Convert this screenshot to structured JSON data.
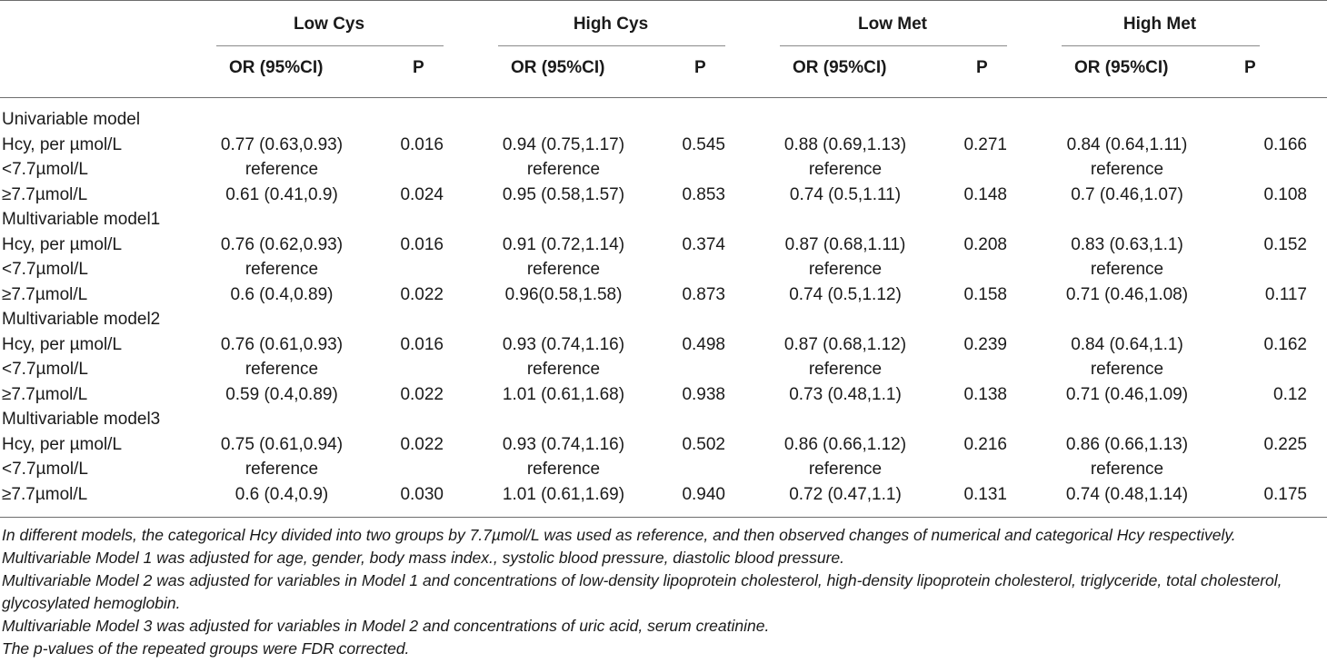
{
  "groups": [
    {
      "name": "Low Cys",
      "or_header": "OR (95%CI)",
      "p_header": "P"
    },
    {
      "name": "High Cys",
      "or_header": "OR (95%CI)",
      "p_header": "P"
    },
    {
      "name": "Low Met",
      "or_header": "OR (95%CI)",
      "p_header": "P"
    },
    {
      "name": "High Met",
      "or_header": "OR (95%CI)",
      "p_header": "P"
    }
  ],
  "rows": [
    {
      "label": "Univariable model",
      "cells": []
    },
    {
      "label": "Hcy, per µmol/L",
      "cells": [
        [
          "0.77 (0.63,0.93)",
          "0.016"
        ],
        [
          "0.94 (0.75,1.17)",
          "0.545"
        ],
        [
          "0.88 (0.69,1.13)",
          "0.271"
        ],
        [
          "0.84 (0.64,1.11)",
          "0.166"
        ]
      ]
    },
    {
      "label": "<7.7µmol/L",
      "cells": [
        [
          "reference",
          ""
        ],
        [
          "reference",
          ""
        ],
        [
          "reference",
          ""
        ],
        [
          "reference",
          ""
        ]
      ]
    },
    {
      "label": "≥7.7µmol/L",
      "cells": [
        [
          "0.61 (0.41,0.9)",
          "0.024"
        ],
        [
          "0.95 (0.58,1.57)",
          "0.853"
        ],
        [
          "0.74 (0.5,1.11)",
          "0.148"
        ],
        [
          "0.7 (0.46,1.07)",
          "0.108"
        ]
      ]
    },
    {
      "label": "Multivariable model1",
      "cells": []
    },
    {
      "label": "Hcy, per µmol/L",
      "cells": [
        [
          "0.76 (0.62,0.93)",
          "0.016"
        ],
        [
          "0.91 (0.72,1.14)",
          "0.374"
        ],
        [
          "0.87 (0.68,1.11)",
          "0.208"
        ],
        [
          "0.83 (0.63,1.1)",
          "0.152"
        ]
      ]
    },
    {
      "label": "<7.7µmol/L",
      "cells": [
        [
          "reference",
          ""
        ],
        [
          "reference",
          ""
        ],
        [
          "reference",
          ""
        ],
        [
          "reference",
          ""
        ]
      ]
    },
    {
      "label": "≥7.7µmol/L",
      "cells": [
        [
          "0.6 (0.4,0.89)",
          "0.022"
        ],
        [
          "0.96(0.58,1.58)",
          "0.873"
        ],
        [
          "0.74 (0.5,1.12)",
          "0.158"
        ],
        [
          "0.71 (0.46,1.08)",
          "0.117"
        ]
      ]
    },
    {
      "label": "Multivariable model2",
      "cells": []
    },
    {
      "label": "Hcy, per µmol/L",
      "cells": [
        [
          "0.76 (0.61,0.93)",
          "0.016"
        ],
        [
          "0.93 (0.74,1.16)",
          "0.498"
        ],
        [
          "0.87 (0.68,1.12)",
          "0.239"
        ],
        [
          "0.84 (0.64,1.1)",
          "0.162"
        ]
      ]
    },
    {
      "label": "<7.7µmol/L",
      "cells": [
        [
          "reference",
          ""
        ],
        [
          "reference",
          ""
        ],
        [
          "reference",
          ""
        ],
        [
          "reference",
          ""
        ]
      ]
    },
    {
      "label": "≥7.7µmol/L",
      "cells": [
        [
          "0.59 (0.4,0.89)",
          "0.022"
        ],
        [
          "1.01 (0.61,1.68)",
          "0.938"
        ],
        [
          "0.73 (0.48,1.1)",
          "0.138"
        ],
        [
          "0.71 (0.46,1.09)",
          "0.12"
        ]
      ]
    },
    {
      "label": "Multivariable model3",
      "cells": []
    },
    {
      "label": "Hcy, per µmol/L",
      "cells": [
        [
          "0.75 (0.61,0.94)",
          "0.022"
        ],
        [
          "0.93 (0.74,1.16)",
          "0.502"
        ],
        [
          "0.86 (0.66,1.12)",
          "0.216"
        ],
        [
          "0.86 (0.66,1.13)",
          "0.225"
        ]
      ]
    },
    {
      "label": "<7.7µmol/L",
      "cells": [
        [
          "reference",
          ""
        ],
        [
          "reference",
          ""
        ],
        [
          "reference",
          ""
        ],
        [
          "reference",
          ""
        ]
      ]
    },
    {
      "label": "≥7.7µmol/L",
      "cells": [
        [
          "0.6 (0.4,0.9)",
          "0.030"
        ],
        [
          "1.01 (0.61,1.69)",
          "0.940"
        ],
        [
          "0.72 (0.47,1.1)",
          "0.131"
        ],
        [
          "0.74 (0.48,1.14)",
          "0.175"
        ]
      ]
    }
  ],
  "footnotes": [
    "In different models, the categorical Hcy divided into two groups by 7.7µmol/L was used as reference, and then observed changes of numerical and categorical Hcy respectively.",
    "Multivariable Model 1 was adjusted for age, gender, body mass index., systolic blood pressure, diastolic blood pressure.",
    "Multivariable Model 2 was adjusted for variables in Model 1 and concentrations of low-density lipoprotein cholesterol, high-density lipoprotein cholesterol, triglyceride, total cholesterol,",
    "glycosylated hemoglobin.",
    "Multivariable Model 3 was adjusted for variables in Model 2 and concentrations of uric acid, serum creatinine.",
    "The p-values of the repeated groups were FDR corrected."
  ]
}
